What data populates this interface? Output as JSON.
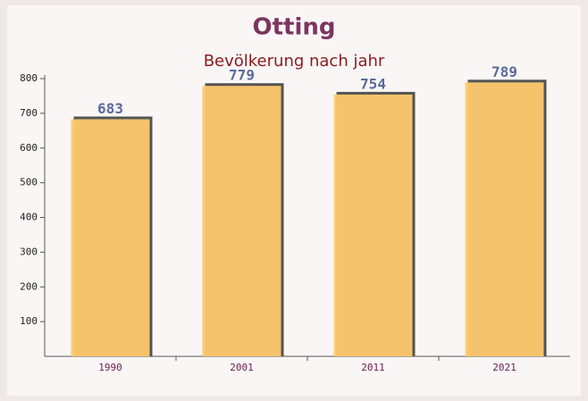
{
  "chart_data": {
    "type": "bar",
    "title": "Otting",
    "subtitle": "Bevölkerung nach jahr",
    "categories": [
      "1990",
      "2001",
      "2011",
      "2021"
    ],
    "values": [
      683,
      779,
      754,
      789
    ],
    "color": "#fdc96d",
    "ylim": [
      0,
      800
    ],
    "yticks": [
      100,
      200,
      300,
      400,
      500,
      600,
      700,
      800
    ]
  }
}
